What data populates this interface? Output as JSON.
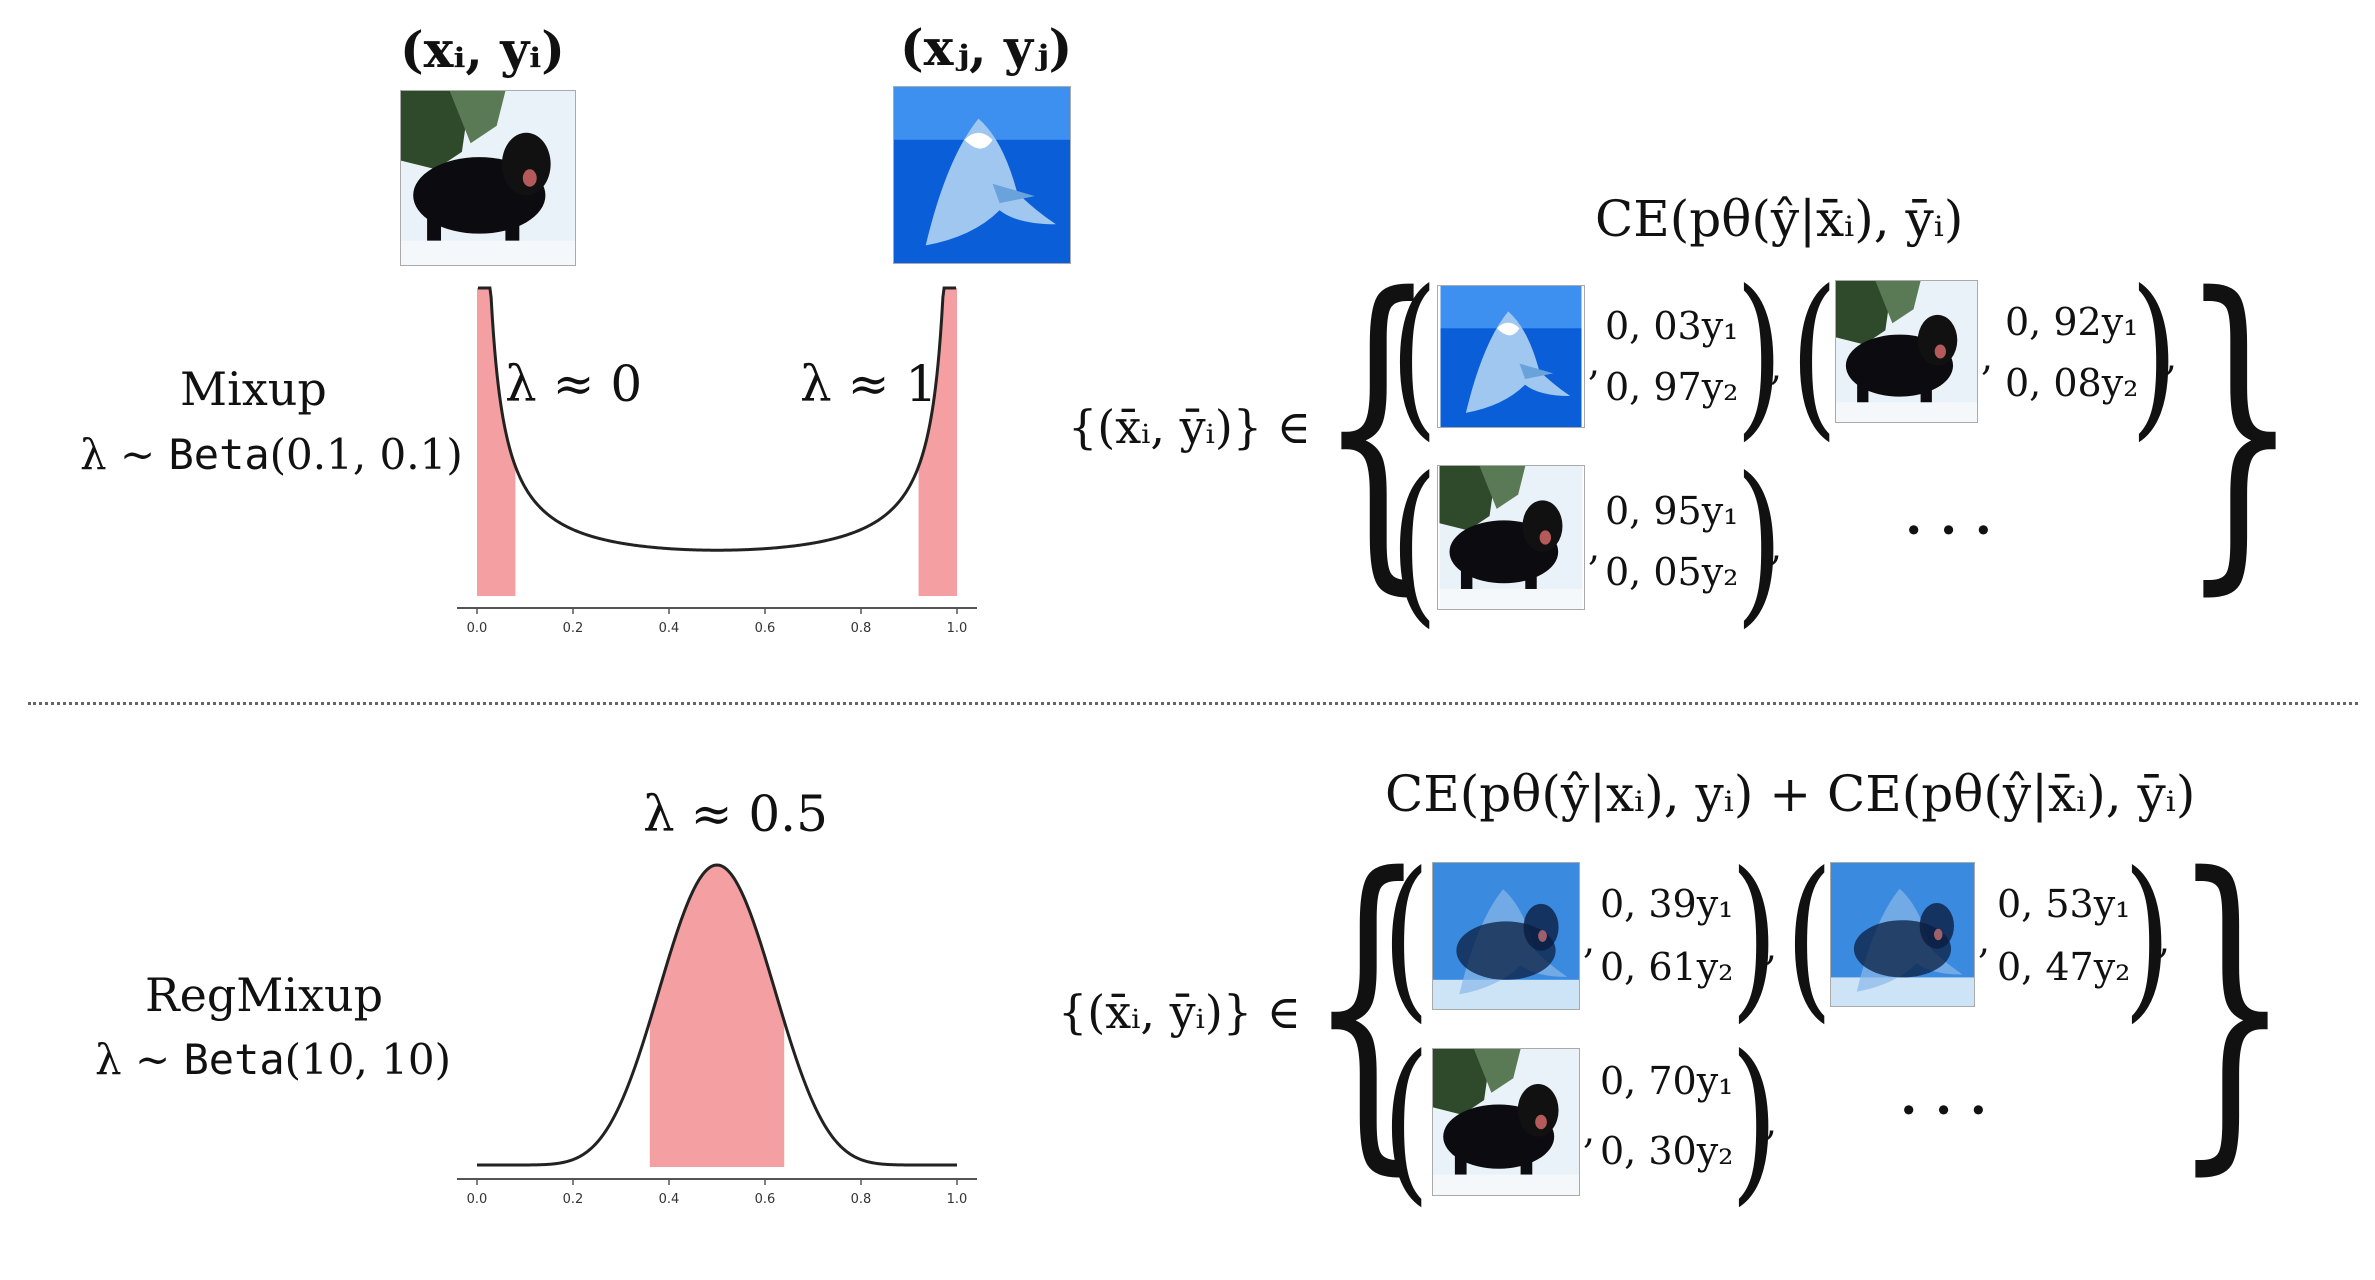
{
  "top": {
    "pair_i": "(xᵢ, yᵢ)",
    "pair_j": "(xⱼ, yⱼ)",
    "method": "Mixup",
    "dist_prefix": "λ ~ ",
    "dist_name": "Beta",
    "dist_args": "(0.1, 0.1)",
    "left_annot": "λ ≈ 0",
    "right_annot": "λ ≈ 1",
    "loss": "CE(pθ(ŷ|x̄ᵢ), ȳᵢ)",
    "set_label": "{(x̄ᵢ, ȳᵢ)} ∈",
    "ellipsis": "· · ·",
    "items": [
      {
        "c1": "0, 03y₁",
        "c2": "0, 97y₂"
      },
      {
        "c1": "0, 92y₁",
        "c2": "0, 08y₂"
      },
      {
        "c1": "0, 95y₁",
        "c2": "0, 05y₂"
      }
    ],
    "ticks": [
      "0.0",
      "0.2",
      "0.4",
      "0.6",
      "0.8",
      "1.0"
    ]
  },
  "bottom": {
    "method": "RegMixup",
    "dist_prefix": "λ ~ ",
    "dist_name": "Beta",
    "dist_args": "(10, 10)",
    "peak_annot": "λ ≈ 0.5",
    "loss": "CE(pθ(ŷ|xᵢ), yᵢ) + CE(pθ(ŷ|x̄ᵢ), ȳᵢ)",
    "set_label": "{(x̄ᵢ, ȳᵢ)} ∈",
    "ellipsis": "· · ·",
    "items": [
      {
        "c1": "0, 39y₁",
        "c2": "0, 61y₂"
      },
      {
        "c1": "0, 53y₁",
        "c2": "0, 47y₂"
      },
      {
        "c1": "0, 70y₁",
        "c2": "0, 30y₂"
      }
    ],
    "ticks": [
      "0.0",
      "0.2",
      "0.4",
      "0.6",
      "0.8",
      "1.0"
    ]
  },
  "chart_data": [
    {
      "type": "line",
      "xlim": [
        0,
        1
      ],
      "distribution": "Beta(0.1, 0.1)",
      "shaded_regions": [
        [
          0.0,
          0.08
        ],
        [
          0.92,
          1.0
        ]
      ],
      "x_ticks": [
        0.0,
        0.2,
        0.4,
        0.6,
        0.8,
        1.0
      ]
    },
    {
      "type": "line",
      "xlim": [
        0,
        1
      ],
      "distribution": "Beta(10, 10)",
      "shaded_regions": [
        [
          0.36,
          0.64
        ]
      ],
      "x_ticks": [
        0.0,
        0.2,
        0.4,
        0.6,
        0.8,
        1.0
      ]
    }
  ]
}
